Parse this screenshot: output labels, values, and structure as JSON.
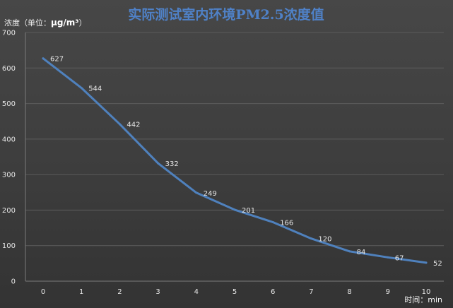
{
  "chart_data": {
    "type": "line",
    "title": "实际测试室内环境PM2.5浓度值",
    "ylabel_prefix": "浓度（单位：",
    "ylabel_unit": "μg/m³",
    "ylabel_suffix": "）",
    "xlabel": "时间：min",
    "x": [
      0,
      1,
      2,
      3,
      4,
      5,
      6,
      7,
      8,
      9,
      10
    ],
    "values": [
      627,
      544,
      442,
      332,
      249,
      201,
      166,
      120,
      84,
      67,
      52
    ],
    "ylim": [
      0,
      700
    ],
    "yticks": [
      0,
      100,
      200,
      300,
      400,
      500,
      600,
      700
    ],
    "ytick_labels": [
      "0",
      "100",
      "200",
      "300",
      "400",
      "500",
      "600",
      "700"
    ],
    "grid": true,
    "series_color": "#4f81bd",
    "title_color": "#4f81c7"
  }
}
